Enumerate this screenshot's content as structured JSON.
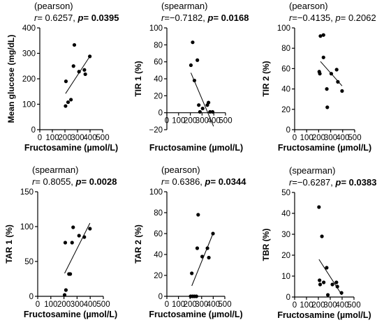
{
  "chart_data": [
    {
      "type": "scatter",
      "method": "(pearson)",
      "stat": {
        "r_prefix": "r",
        "r_value": "= 0.6257, ",
        "p_prefix": "p",
        "p_value": "= 0.0395",
        "p_bold": true
      },
      "xlabel": "Fructosamine (µmol/L)",
      "ylabel": "Mean glucose (mg/dL)",
      "xlim": [
        0,
        500
      ],
      "ylim": [
        0,
        400
      ],
      "xticks": [
        "0",
        "100",
        "200",
        "300",
        "400",
        "500"
      ],
      "yticks": [
        "0",
        "100",
        "200",
        "300",
        "400"
      ],
      "points": [
        {
          "x": 205,
          "y": 93
        },
        {
          "x": 208,
          "y": 190
        },
        {
          "x": 225,
          "y": 108
        },
        {
          "x": 248,
          "y": 118
        },
        {
          "x": 268,
          "y": 250
        },
        {
          "x": 275,
          "y": 333
        },
        {
          "x": 312,
          "y": 228
        },
        {
          "x": 355,
          "y": 235
        },
        {
          "x": 362,
          "y": 218
        },
        {
          "x": 398,
          "y": 288
        }
      ],
      "trendline": {
        "x": [
          205,
          398
        ],
        "y": [
          142,
          288
        ]
      }
    },
    {
      "type": "scatter",
      "method": "(spearman)",
      "stat": {
        "r_prefix": "r",
        "r_value": "=−0.7182, ",
        "p_prefix": "p",
        "p_value": "= 0.0168",
        "p_bold": true
      },
      "xlabel": "Fructosamine (µmol/L)",
      "ylabel": "TIR 1 (%)",
      "xlim": [
        0,
        500
      ],
      "ylim": [
        -20,
        100
      ],
      "xticks": [
        "0",
        "100",
        "200",
        "300",
        "400",
        "500"
      ],
      "yticks": [
        "−20",
        "0",
        "20",
        "40",
        "60",
        "80",
        "100"
      ],
      "points": [
        {
          "x": 205,
          "y": 56
        },
        {
          "x": 220,
          "y": 83
        },
        {
          "x": 235,
          "y": 38
        },
        {
          "x": 260,
          "y": 62
        },
        {
          "x": 272,
          "y": 9
        },
        {
          "x": 282,
          "y": 1
        },
        {
          "x": 305,
          "y": 5
        },
        {
          "x": 345,
          "y": 9
        },
        {
          "x": 355,
          "y": 12
        },
        {
          "x": 368,
          "y": 1
        },
        {
          "x": 390,
          "y": 1
        }
      ],
      "trendline": {
        "x": [
          205,
          398
        ],
        "y": [
          47,
          -16
        ]
      }
    },
    {
      "type": "scatter",
      "method": "(pearson)",
      "stat": {
        "r_prefix": "r",
        "r_value": "=−0.4135, ",
        "p_prefix": "p",
        "p_value": "= 0.2062",
        "p_bold": false
      },
      "xlabel": "Fructosamine (µmol/L)",
      "ylabel": "TIR 2 (%)",
      "xlim": [
        0,
        500
      ],
      "ylim": [
        0,
        100
      ],
      "xticks": [
        "0",
        "100",
        "200",
        "300",
        "400",
        "500"
      ],
      "yticks": [
        "0",
        "20",
        "40",
        "60",
        "80",
        "100"
      ],
      "points": [
        {
          "x": 205,
          "y": 57
        },
        {
          "x": 210,
          "y": 55
        },
        {
          "x": 215,
          "y": 92
        },
        {
          "x": 240,
          "y": 93
        },
        {
          "x": 240,
          "y": 71
        },
        {
          "x": 268,
          "y": 40
        },
        {
          "x": 272,
          "y": 22
        },
        {
          "x": 305,
          "y": 55
        },
        {
          "x": 350,
          "y": 59
        },
        {
          "x": 360,
          "y": 47
        },
        {
          "x": 395,
          "y": 38
        }
      ],
      "trendline": {
        "x": [
          215,
          395
        ],
        "y": [
          67,
          43
        ]
      }
    },
    {
      "type": "scatter",
      "method": "(spearman)",
      "stat": {
        "r_prefix": "r",
        "r_value": "= 0.8055, ",
        "p_prefix": "p",
        "p_value": "= 0.0028",
        "p_bold": true
      },
      "xlabel": "Fructosamine (µmol/L)",
      "ylabel": "TAR 1 (%)",
      "xlim": [
        0,
        500
      ],
      "ylim": [
        0,
        150
      ],
      "xticks": [
        "0",
        "100",
        "200",
        "300",
        "400",
        "500"
      ],
      "yticks": [
        "0",
        "50",
        "100",
        "150"
      ],
      "points": [
        {
          "x": 205,
          "y": 2
        },
        {
          "x": 210,
          "y": 77
        },
        {
          "x": 215,
          "y": 9
        },
        {
          "x": 238,
          "y": 32
        },
        {
          "x": 248,
          "y": 32
        },
        {
          "x": 262,
          "y": 77
        },
        {
          "x": 270,
          "y": 99
        },
        {
          "x": 315,
          "y": 87
        },
        {
          "x": 355,
          "y": 85
        },
        {
          "x": 398,
          "y": 97
        }
      ],
      "trendline": {
        "x": [
          205,
          398
        ],
        "y": [
          33,
          105
        ]
      }
    },
    {
      "type": "scatter",
      "method": "(pearson)",
      "stat": {
        "r_prefix": "r",
        "r_value": "= 0.6386, ",
        "p_prefix": "p",
        "p_value": "= 0.0344",
        "p_bold": true
      },
      "xlabel": "Fructosamine (µmol/L)",
      "ylabel": "TAR 2 (%)",
      "xlim": [
        0,
        500
      ],
      "ylim": [
        0,
        100
      ],
      "xticks": [
        "0",
        "100",
        "200",
        "300",
        "400",
        "500"
      ],
      "yticks": [
        "0",
        "20",
        "40",
        "60",
        "80",
        "100"
      ],
      "points": [
        {
          "x": 205,
          "y": 0
        },
        {
          "x": 215,
          "y": 22
        },
        {
          "x": 222,
          "y": 0
        },
        {
          "x": 238,
          "y": 0
        },
        {
          "x": 255,
          "y": 0
        },
        {
          "x": 262,
          "y": 46
        },
        {
          "x": 270,
          "y": 78
        },
        {
          "x": 305,
          "y": 38
        },
        {
          "x": 350,
          "y": 46
        },
        {
          "x": 362,
          "y": 37
        },
        {
          "x": 398,
          "y": 60
        }
      ],
      "trendline": {
        "x": [
          215,
          398
        ],
        "y": [
          10,
          60
        ]
      }
    },
    {
      "type": "scatter",
      "method": "(spearman)",
      "stat": {
        "r_prefix": "r",
        "r_value": "=−0.6287, ",
        "p_prefix": "p",
        "p_value": "= 0.0383",
        "p_bold": true
      },
      "xlabel": "Fructosamine (µmol/L)",
      "ylabel": "TBR (%)",
      "xlim": [
        0,
        500
      ],
      "ylim": [
        0,
        50
      ],
      "xticks": [
        "0",
        "100",
        "200",
        "300",
        "400",
        "500"
      ],
      "yticks": [
        "0",
        "10",
        "20",
        "30",
        "40",
        "50"
      ],
      "points": [
        {
          "x": 205,
          "y": 43
        },
        {
          "x": 210,
          "y": 8
        },
        {
          "x": 215,
          "y": 6
        },
        {
          "x": 230,
          "y": 29
        },
        {
          "x": 245,
          "y": 7
        },
        {
          "x": 270,
          "y": 14
        },
        {
          "x": 280,
          "y": 1
        },
        {
          "x": 318,
          "y": 6
        },
        {
          "x": 352,
          "y": 7
        },
        {
          "x": 360,
          "y": 5
        },
        {
          "x": 395,
          "y": 2
        }
      ],
      "trendline": {
        "x": [
          205,
          398
        ],
        "y": [
          18,
          1
        ]
      }
    }
  ]
}
